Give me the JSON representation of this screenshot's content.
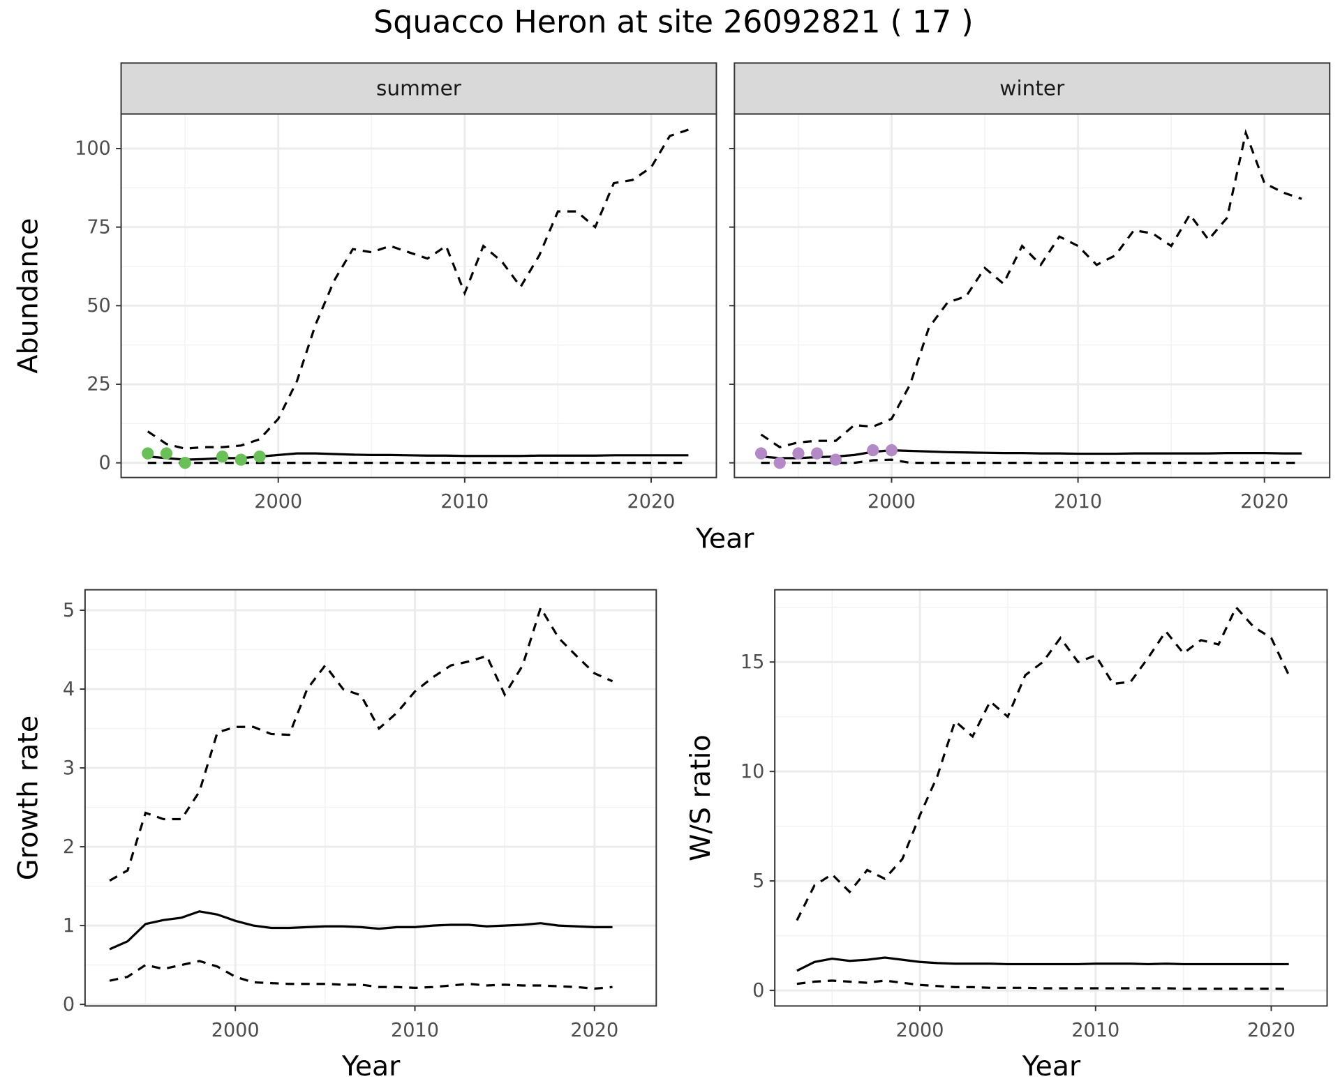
{
  "title": "Squacco Heron at site 26092821 ( 17 )",
  "chart_data": [
    {
      "type": "line",
      "strip": "summer",
      "xlabel": "Year",
      "ylabel": "Abundance",
      "xlim": [
        1991.57,
        2023.5
      ],
      "ylim": [
        -4.67,
        111
      ],
      "xticks": [
        2000,
        2010,
        2020
      ],
      "yticks": [
        0,
        25,
        50,
        75,
        100
      ],
      "grid": true,
      "x": [
        1993,
        1994,
        1995,
        1996,
        1997,
        1998,
        1999,
        2000,
        2001,
        2002,
        2003,
        2004,
        2005,
        2006,
        2007,
        2008,
        2009,
        2010,
        2011,
        2012,
        2013,
        2014,
        2015,
        2016,
        2017,
        2018,
        2019,
        2020,
        2021,
        2022
      ],
      "series": [
        {
          "style": "dashed",
          "color": "#000000",
          "values": [
            10,
            6,
            4.5,
            5,
            5,
            5.5,
            7.5,
            14,
            26,
            44,
            58,
            68,
            67,
            69,
            67,
            65,
            69,
            54,
            69,
            64,
            56,
            66,
            80,
            80,
            75,
            89,
            90,
            94,
            104,
            106
          ]
        },
        {
          "style": "solid",
          "color": "#000000",
          "values": [
            2,
            1.5,
            1,
            1.2,
            1.5,
            1.5,
            2,
            2.5,
            3,
            3,
            2.8,
            2.6,
            2.5,
            2.5,
            2.4,
            2.3,
            2.3,
            2.2,
            2.2,
            2.2,
            2.2,
            2.3,
            2.3,
            2.3,
            2.3,
            2.4,
            2.4,
            2.4,
            2.4,
            2.4
          ]
        },
        {
          "style": "dashed",
          "color": "#000000",
          "values": [
            0,
            0,
            0,
            0,
            0,
            0,
            0,
            0,
            0,
            0,
            0,
            0,
            0,
            0,
            0,
            0,
            0,
            0,
            0,
            0,
            0,
            0,
            0,
            0,
            0,
            0,
            0,
            0,
            0,
            0
          ]
        },
        {
          "style": "points",
          "color": "#6abf59",
          "x": [
            1993,
            1994,
            1995,
            1997,
            1998,
            1999
          ],
          "values": [
            3,
            3,
            0,
            2,
            1,
            2
          ]
        }
      ]
    },
    {
      "type": "line",
      "strip": "winter",
      "xlim": [
        1991.57,
        2023.5
      ],
      "ylim": [
        -4.67,
        111
      ],
      "xticks": [
        2000,
        2010,
        2020
      ],
      "yticks": [
        0,
        25,
        50,
        75,
        100
      ],
      "grid": true,
      "x": [
        1993,
        1994,
        1995,
        1996,
        1997,
        1998,
        1999,
        2000,
        2001,
        2002,
        2003,
        2004,
        2005,
        2006,
        2007,
        2008,
        2009,
        2010,
        2011,
        2012,
        2013,
        2014,
        2015,
        2016,
        2017,
        2018,
        2019,
        2020,
        2021,
        2022
      ],
      "series": [
        {
          "style": "dashed",
          "color": "#000000",
          "values": [
            9,
            5,
            6.5,
            7,
            7,
            12,
            11.5,
            14,
            25,
            43,
            51,
            53,
            62,
            57,
            69,
            63,
            72,
            69,
            63,
            66,
            74,
            73,
            69,
            79,
            71,
            78,
            105,
            89,
            86,
            84
          ]
        },
        {
          "style": "solid",
          "color": "#000000",
          "values": [
            2,
            1.5,
            1.5,
            1.8,
            2,
            2.5,
            3.5,
            4,
            3.8,
            3.6,
            3.4,
            3.3,
            3.2,
            3.1,
            3.1,
            3,
            3,
            2.9,
            2.9,
            2.9,
            3,
            3,
            3,
            3,
            3,
            3.1,
            3.1,
            3.1,
            3,
            3
          ]
        },
        {
          "style": "dashed",
          "color": "#000000",
          "values": [
            0,
            0,
            0,
            0,
            0,
            0,
            0.8,
            1,
            0,
            0,
            0,
            0,
            0,
            0,
            0,
            0,
            0,
            0,
            0,
            0,
            0,
            0,
            0,
            0,
            0,
            0,
            0,
            0,
            0,
            0
          ]
        },
        {
          "style": "points",
          "color": "#b48ac6",
          "x": [
            1993,
            1994,
            1995,
            1996,
            1997,
            1999,
            2000
          ],
          "values": [
            3,
            0,
            3,
            3,
            1,
            4,
            4
          ]
        }
      ]
    },
    {
      "type": "line",
      "xlabel": "Year",
      "ylabel": "Growth rate",
      "xlim": [
        1991.63,
        2023.44
      ],
      "ylim": [
        -0.02,
        5.26
      ],
      "xticks": [
        2000,
        2010,
        2020
      ],
      "yticks": [
        0,
        1,
        2,
        3,
        4,
        5
      ],
      "grid": true,
      "x": [
        1993,
        1994,
        1995,
        1996,
        1997,
        1998,
        1999,
        2000,
        2001,
        2002,
        2003,
        2004,
        2005,
        2006,
        2007,
        2008,
        2009,
        2010,
        2011,
        2012,
        2013,
        2014,
        2015,
        2016,
        2017,
        2018,
        2019,
        2020,
        2021
      ],
      "series": [
        {
          "style": "dashed",
          "color": "#000000",
          "values": [
            1.57,
            1.7,
            2.43,
            2.35,
            2.35,
            2.7,
            3.45,
            3.52,
            3.52,
            3.43,
            3.42,
            4.0,
            4.3,
            4.0,
            3.92,
            3.5,
            3.7,
            3.97,
            4.15,
            4.3,
            4.35,
            4.42,
            3.93,
            4.3,
            5.03,
            4.65,
            4.42,
            4.2,
            4.1
          ]
        },
        {
          "style": "solid",
          "color": "#000000",
          "values": [
            0.7,
            0.8,
            1.02,
            1.07,
            1.1,
            1.18,
            1.14,
            1.06,
            1.0,
            0.97,
            0.97,
            0.98,
            0.99,
            0.99,
            0.98,
            0.96,
            0.98,
            0.98,
            1.0,
            1.01,
            1.01,
            0.99,
            1.0,
            1.01,
            1.03,
            1.0,
            0.99,
            0.98,
            0.98
          ]
        },
        {
          "style": "dashed",
          "color": "#000000",
          "values": [
            0.3,
            0.35,
            0.5,
            0.45,
            0.5,
            0.55,
            0.48,
            0.35,
            0.28,
            0.27,
            0.26,
            0.26,
            0.26,
            0.25,
            0.25,
            0.22,
            0.22,
            0.21,
            0.22,
            0.24,
            0.26,
            0.24,
            0.25,
            0.24,
            0.24,
            0.23,
            0.22,
            0.2,
            0.22
          ]
        }
      ]
    },
    {
      "type": "line",
      "xlabel": "Year",
      "ylabel": "W/S ratio",
      "xlim": [
        1991.74,
        2023.18
      ],
      "ylim": [
        -0.71,
        18.3
      ],
      "xticks": [
        2000,
        2010,
        2020
      ],
      "yticks": [
        0,
        5,
        10,
        15
      ],
      "grid": true,
      "x": [
        1993,
        1994,
        1995,
        1996,
        1997,
        1998,
        1999,
        2000,
        2001,
        2002,
        2003,
        2004,
        2005,
        2006,
        2007,
        2008,
        2009,
        2010,
        2011,
        2012,
        2013,
        2014,
        2015,
        2016,
        2017,
        2018,
        2019,
        2020,
        2021
      ],
      "series": [
        {
          "style": "dashed",
          "color": "#000000",
          "values": [
            3.2,
            4.8,
            5.3,
            4.5,
            5.5,
            5.1,
            6.0,
            8.0,
            9.8,
            12.3,
            11.6,
            13.2,
            12.5,
            14.4,
            15.0,
            16.1,
            15.0,
            15.3,
            14.0,
            14.1,
            15.2,
            16.4,
            15.4,
            16.0,
            15.8,
            17.5,
            16.6,
            16.1,
            14.4
          ]
        },
        {
          "style": "solid",
          "color": "#000000",
          "values": [
            0.9,
            1.3,
            1.45,
            1.35,
            1.4,
            1.5,
            1.4,
            1.3,
            1.25,
            1.22,
            1.22,
            1.22,
            1.2,
            1.2,
            1.2,
            1.2,
            1.2,
            1.22,
            1.22,
            1.22,
            1.2,
            1.22,
            1.2,
            1.2,
            1.2,
            1.2,
            1.2,
            1.2,
            1.2
          ]
        },
        {
          "style": "dashed",
          "color": "#000000",
          "values": [
            0.3,
            0.4,
            0.45,
            0.4,
            0.35,
            0.45,
            0.35,
            0.25,
            0.2,
            0.15,
            0.15,
            0.12,
            0.12,
            0.12,
            0.1,
            0.1,
            0.1,
            0.1,
            0.1,
            0.1,
            0.1,
            0.1,
            0.08,
            0.08,
            0.08,
            0.08,
            0.08,
            0.08,
            0.07
          ]
        }
      ]
    }
  ]
}
